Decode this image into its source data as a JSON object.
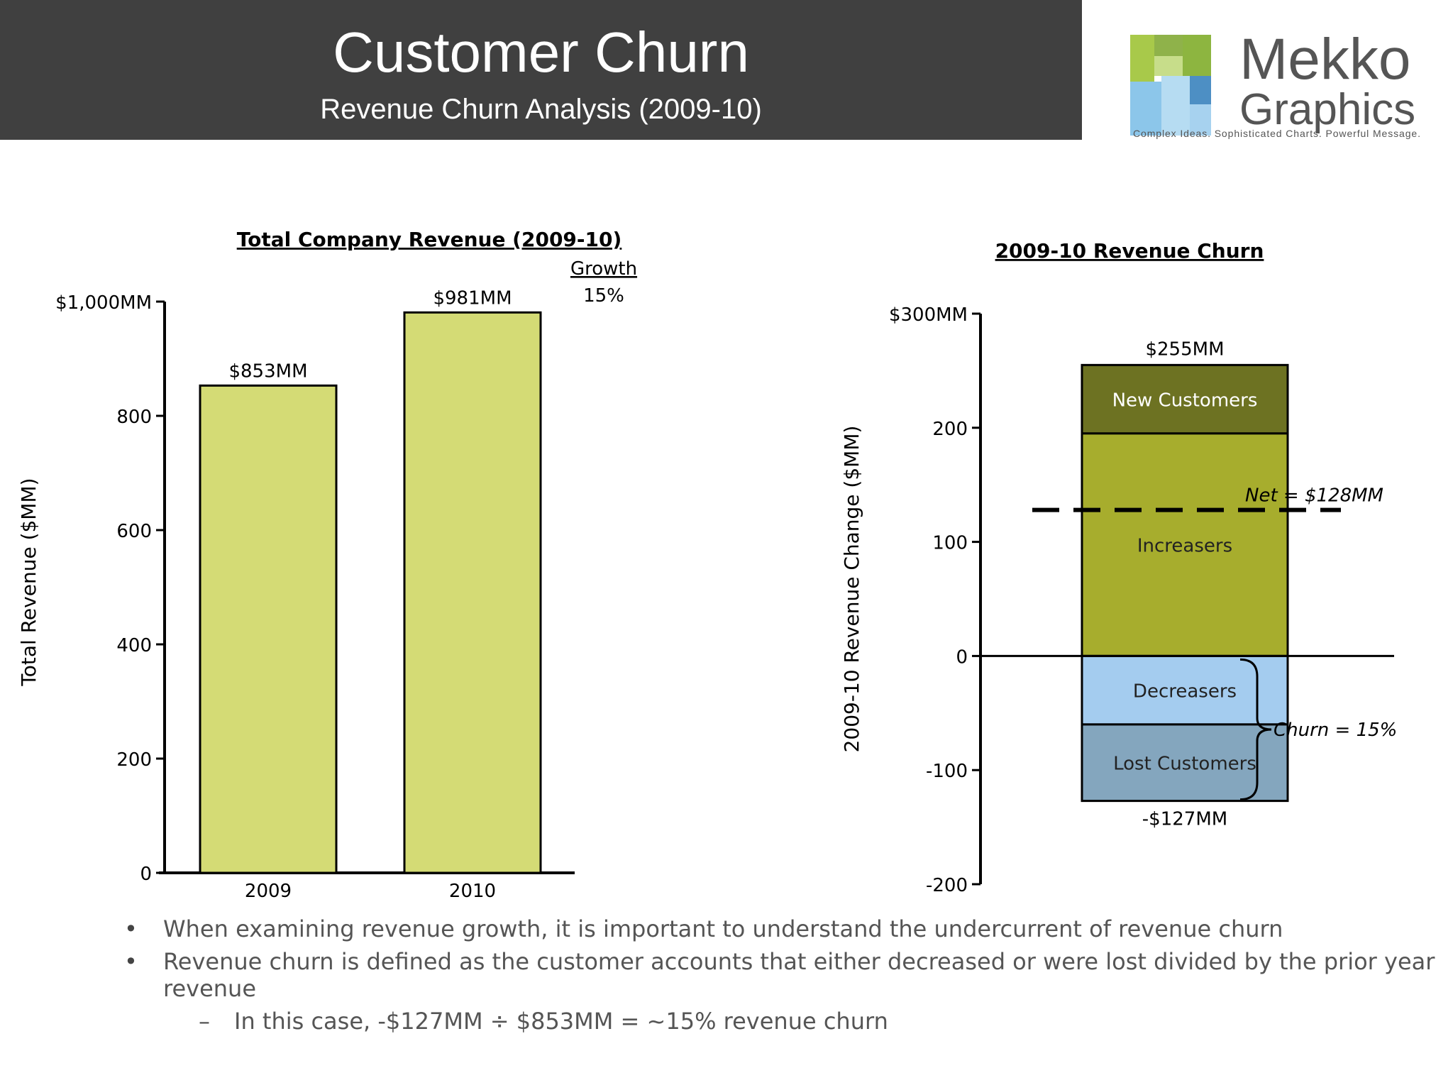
{
  "header": {
    "title": "Customer Churn",
    "subtitle": "Revenue Churn Analysis (2009-10)"
  },
  "logo": {
    "line1": "Mekko",
    "line2": "Graphics",
    "tagline": "Complex Ideas. Sophisticated Charts. Powerful Message."
  },
  "chart_data": [
    {
      "type": "bar",
      "title": "Total Company Revenue (2009-10)",
      "ylabel": "Total Revenue ($MM)",
      "xlabel": "",
      "categories": [
        "2009",
        "2010"
      ],
      "values": [
        853,
        981
      ],
      "data_labels": [
        "$853MM",
        "$981MM"
      ],
      "ylim": [
        0,
        1000
      ],
      "yticks": [
        0,
        200,
        400,
        600,
        800,
        1000
      ],
      "ytick_labels": [
        "0",
        "200",
        "400",
        "600",
        "800",
        "$1,000MM"
      ],
      "growth_header": "Growth",
      "growth_value": "15%",
      "bar_color": "#d4db75",
      "grid": false
    },
    {
      "type": "bar",
      "subtype": "stacked",
      "title": "2009-10 Revenue Churn",
      "ylabel": "2009-10 Revenue Change ($MM)",
      "ylim": [
        -200,
        300
      ],
      "yticks": [
        -200,
        -100,
        0,
        100,
        200,
        300
      ],
      "ytick_labels": [
        "-200",
        "-100",
        "0",
        "100",
        "200",
        "$300MM"
      ],
      "segments": [
        {
          "name": "New Customers",
          "start": 195,
          "end": 255,
          "color": "#6d7222",
          "text_color": "#ffffff"
        },
        {
          "name": "Increasers",
          "start": 0,
          "end": 195,
          "color": "#a7ad2d",
          "text_color": "#222222"
        },
        {
          "name": "Decreasers",
          "start": -60,
          "end": 0,
          "color": "#a4ccef",
          "text_color": "#222222"
        },
        {
          "name": "Lost Customers",
          "start": -127,
          "end": -60,
          "color": "#84a6be",
          "text_color": "#222222"
        }
      ],
      "total_positive_label": "$255MM",
      "total_negative_label": "-$127MM",
      "net_value": 128,
      "net_label": "Net = $128MM",
      "churn_label": "Churn = 15%",
      "grid": false
    }
  ],
  "bullets": [
    "When examining revenue growth, it is important to understand the undercurrent of revenue churn",
    "Revenue churn is defined as the customer accounts that either decreased or were lost divided by the prior year revenue"
  ],
  "sub_bullet": "In this case, -$127MM  ÷ $853MM = ~15% revenue churn"
}
